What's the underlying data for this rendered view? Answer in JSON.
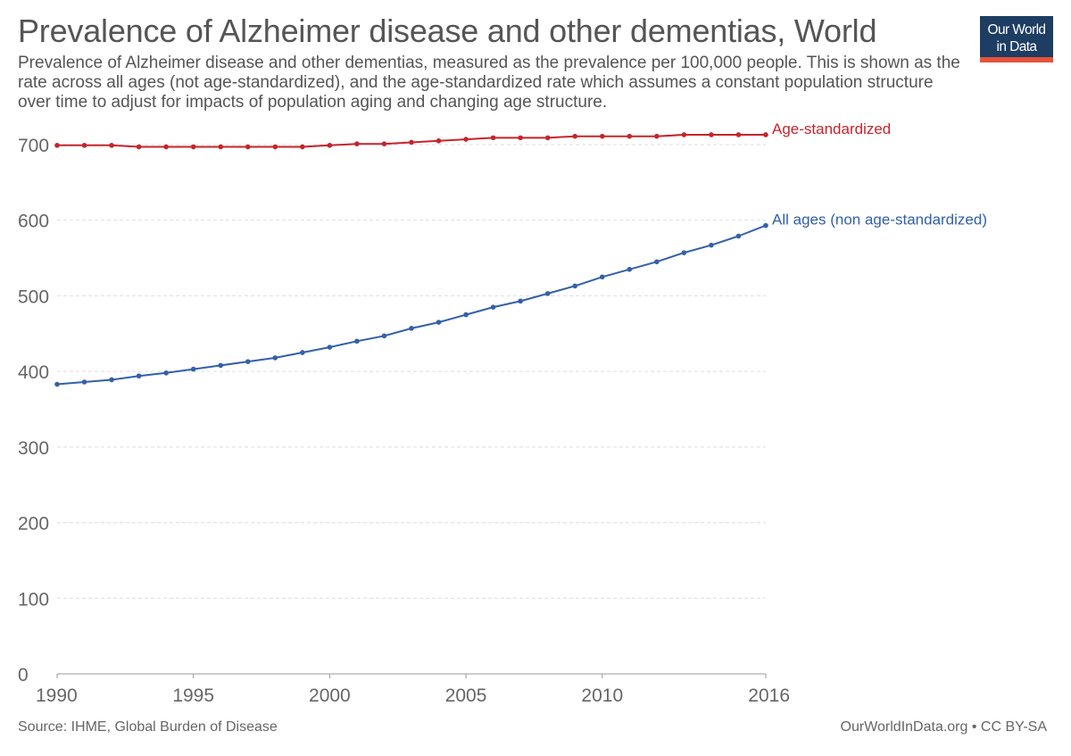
{
  "header": {
    "title": "Prevalence of Alzheimer disease and other dementias, World",
    "subtitle": "Prevalence of Alzheimer disease and other dementias, measured as the prevalence per 100,000 people. This is shown as the rate across all ages (not age-standardized), and the age-standardized rate which assumes a constant population structure over time to adjust for impacts of population aging and changing age structure."
  },
  "logo": {
    "line1": "Our World",
    "line2": "in Data"
  },
  "footer": {
    "source": "Source: IHME, Global Burden of Disease",
    "credit": "OurWorldInData.org • CC BY-SA"
  },
  "chart_data": {
    "type": "line",
    "title": "Prevalence of Alzheimer disease and other dementias, World",
    "xlabel": "",
    "ylabel": "",
    "xlim": [
      1990,
      2016
    ],
    "ylim": [
      0,
      700
    ],
    "x_ticks": [
      1990,
      1995,
      2000,
      2005,
      2010,
      2016
    ],
    "y_ticks": [
      0,
      100,
      200,
      300,
      400,
      500,
      600,
      700
    ],
    "x": [
      1990,
      1991,
      1992,
      1993,
      1994,
      1995,
      1996,
      1997,
      1998,
      1999,
      2000,
      2001,
      2002,
      2003,
      2004,
      2005,
      2006,
      2007,
      2008,
      2009,
      2010,
      2011,
      2012,
      2013,
      2014,
      2015,
      2016
    ],
    "series": [
      {
        "name": "Age-standardized",
        "color": "#c4252b",
        "values": [
          699,
          699,
          699,
          697,
          697,
          697,
          697,
          697,
          697,
          697,
          699,
          701,
          701,
          703,
          705,
          707,
          709,
          709,
          709,
          711,
          711,
          711,
          711,
          713,
          713,
          713,
          713
        ]
      },
      {
        "name": "All ages (non age-standardized)",
        "color": "#3360a9",
        "values": [
          383,
          386,
          389,
          394,
          398,
          403,
          408,
          413,
          418,
          425,
          432,
          440,
          447,
          457,
          465,
          475,
          485,
          493,
          503,
          513,
          525,
          535,
          545,
          557,
          567,
          579,
          593
        ]
      }
    ],
    "grid": "horizontal-dashed",
    "legend": "inline-right"
  }
}
